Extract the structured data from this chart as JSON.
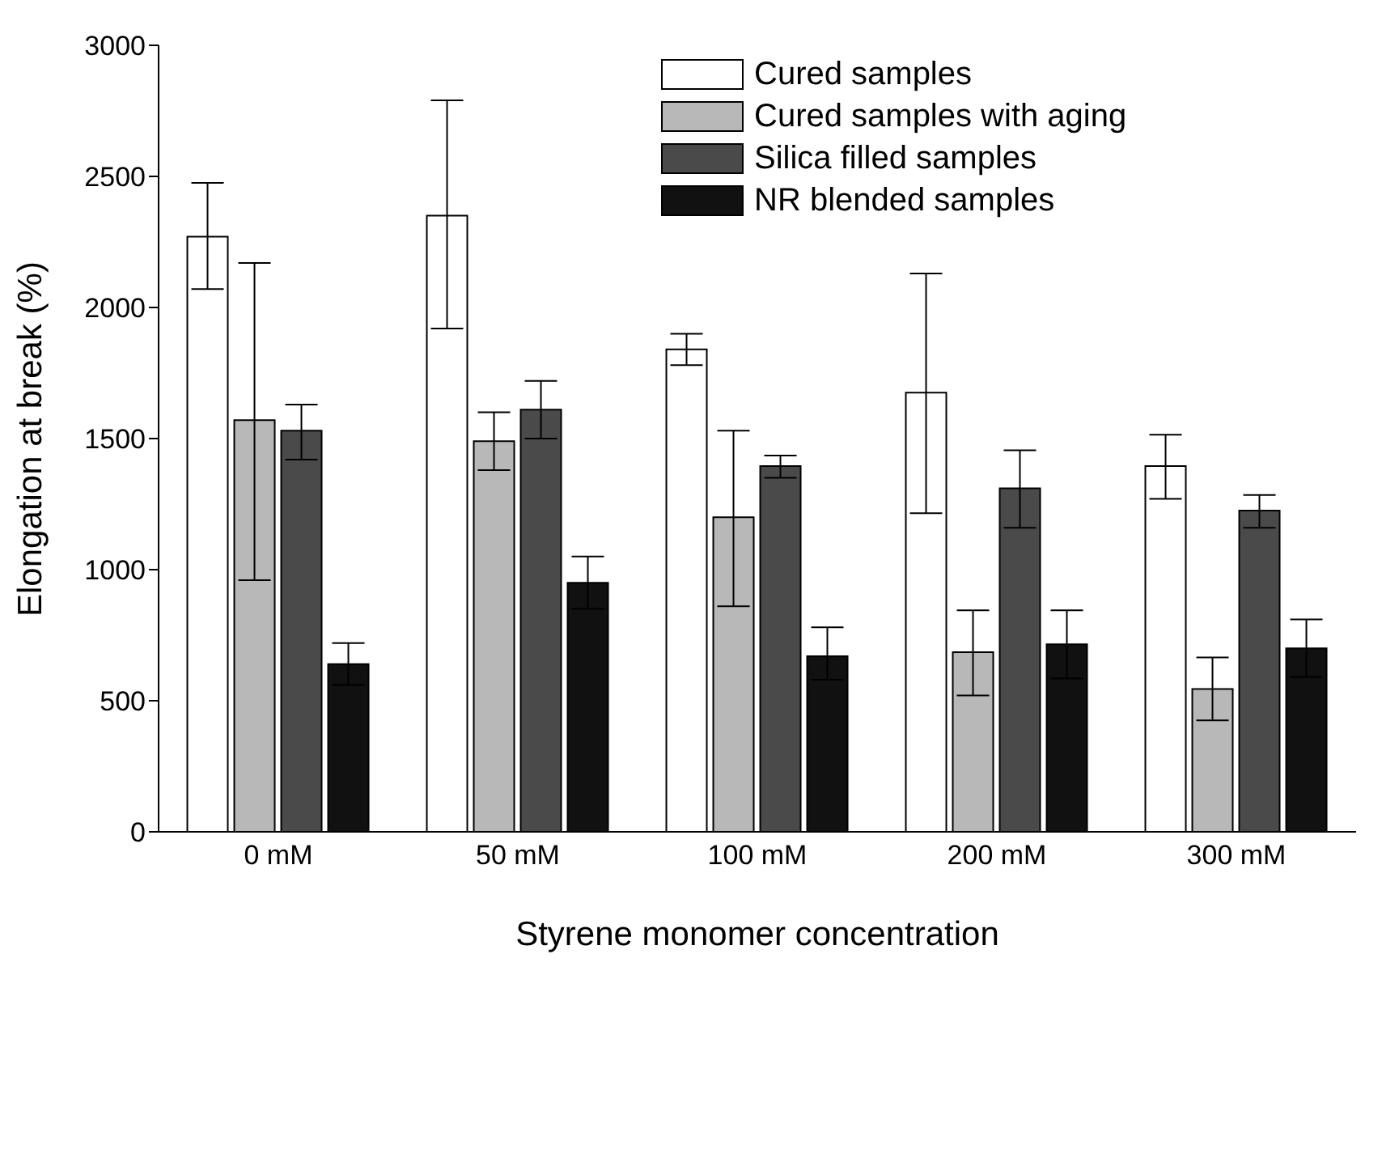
{
  "chart_data": {
    "type": "bar",
    "xlabel": "Styrene monomer concentration",
    "ylabel": "Elongation at break (%)",
    "categories": [
      "0 mM",
      "50 mM",
      "100 mM",
      "200 mM",
      "300 mM"
    ],
    "ylim": [
      0,
      3000
    ],
    "yticks": [
      0,
      500,
      1000,
      1500,
      2000,
      2500,
      3000
    ],
    "grid": false,
    "legend": "top right",
    "series": [
      {
        "name": "Cured samples",
        "color": "#ffffff",
        "values": [
          2270,
          2350,
          1840,
          1675,
          1395
        ],
        "errors": [
          [
            2070,
            2475
          ],
          [
            1920,
            2790
          ],
          [
            1780,
            1900
          ],
          [
            1215,
            2130
          ],
          [
            1270,
            1515
          ]
        ]
      },
      {
        "name": "Cured samples with aging",
        "color": "#b8b8b8",
        "values": [
          1570,
          1490,
          1200,
          685,
          545
        ],
        "errors": [
          [
            960,
            2170
          ],
          [
            1380,
            1600
          ],
          [
            860,
            1530
          ],
          [
            520,
            845
          ],
          [
            425,
            665
          ]
        ]
      },
      {
        "name": "Silica filled samples",
        "color": "#4a4a4a",
        "values": [
          1530,
          1610,
          1395,
          1310,
          1225
        ],
        "errors": [
          [
            1420,
            1630
          ],
          [
            1500,
            1720
          ],
          [
            1350,
            1435
          ],
          [
            1160,
            1455
          ],
          [
            1160,
            1285
          ]
        ]
      },
      {
        "name": "NR blended samples",
        "color": "#111111",
        "values": [
          640,
          950,
          670,
          715,
          700
        ],
        "errors": [
          [
            560,
            720
          ],
          [
            850,
            1050
          ],
          [
            580,
            780
          ],
          [
            585,
            845
          ],
          [
            590,
            810
          ]
        ]
      }
    ]
  }
}
